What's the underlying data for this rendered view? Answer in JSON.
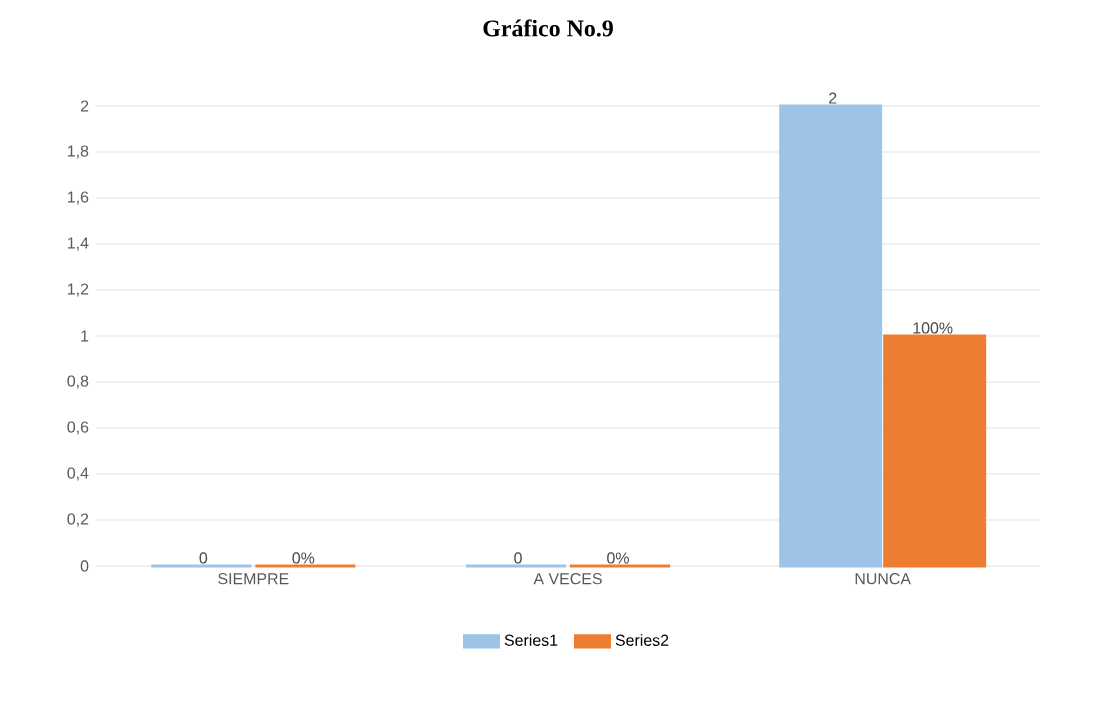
{
  "chart_data": {
    "type": "bar",
    "title": "Gráfico No.9",
    "categories": [
      "SIEMPRE",
      "A VECES",
      "NUNCA"
    ],
    "series": [
      {
        "name": "Series1",
        "color": "#9dc3e6",
        "values": [
          0,
          0,
          2
        ],
        "value_labels": [
          "0",
          "0",
          "2"
        ]
      },
      {
        "name": "Series2",
        "color": "#ed7d31",
        "values": [
          0,
          0,
          1
        ],
        "value_labels": [
          "0%",
          "0%",
          "100%"
        ]
      }
    ],
    "ylim": [
      0,
      2
    ],
    "yticks": [
      0,
      {
        "value": 0.2,
        "label": "0,2"
      },
      {
        "value": 0.4,
        "label": "0,4"
      },
      {
        "value": 0.6,
        "label": "0,6"
      },
      {
        "value": 0.8,
        "label": "0,8"
      },
      1,
      {
        "value": 1.2,
        "label": "1,2"
      },
      {
        "value": 1.4,
        "label": "1,4"
      },
      {
        "value": 1.6,
        "label": "1,6"
      },
      {
        "value": 1.8,
        "label": "1,8"
      },
      2
    ],
    "grid": "y",
    "legend": "bottom"
  }
}
